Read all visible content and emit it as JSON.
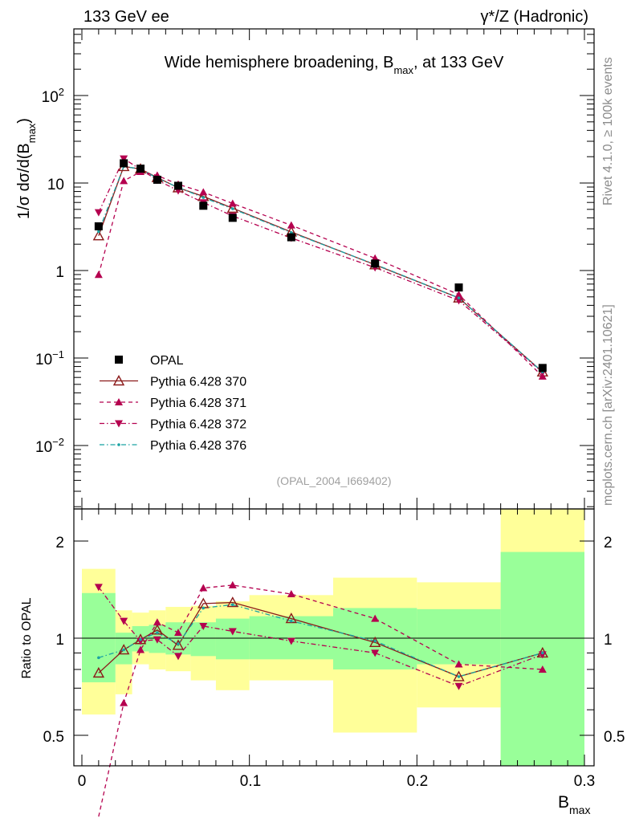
{
  "header": {
    "left": "133 GeV ee",
    "right": "γ*/Z (Hadronic)"
  },
  "plot_title": {
    "main": "Wide hemisphere broadening, B",
    "sub": "max",
    "tail": ", at 133 GeV"
  },
  "ylabel_top": {
    "pre": "1/σ  dσ/d(B",
    "sub": "max",
    "post": ")"
  },
  "ylabel_ratio": "Ratio to OPAL",
  "xlabel": {
    "main": "B",
    "sub": "max"
  },
  "analysis_id": "(OPAL_2004_I669402)",
  "side_text": {
    "rivet": "Rivet 4.1.0, ≥ 100k events",
    "mcplots": "mcplots.cern.ch [arXiv:2401.10621]"
  },
  "legend": [
    {
      "label": "OPAL",
      "marker": "square",
      "color": "#000000",
      "dash": "none"
    },
    {
      "label": "Pythia 6.428 370",
      "marker": "triangle-open",
      "color": "#8b1a1a",
      "dash": "solid"
    },
    {
      "label": "Pythia 6.428 371",
      "marker": "triangle-up",
      "color": "#b5004f",
      "dash": "dashed"
    },
    {
      "label": "Pythia 6.428 372",
      "marker": "triangle-down",
      "color": "#b5004f",
      "dash": "dashdot"
    },
    {
      "label": "Pythia 6.428 376",
      "marker": "dot",
      "color": "#1aa3a3",
      "dash": "dashdot"
    }
  ],
  "y_tick_labels_main": {
    "e2": "10",
    "e2sup": "2",
    "e1": "10",
    "e0": "1",
    "em1": "10",
    "em1sup": "−1",
    "em2": "10",
    "em2sup": "−2"
  },
  "y_tick_labels_ratio": [
    "0.5",
    "1",
    "2"
  ],
  "x_tick_labels": [
    "0",
    "0.1",
    "0.2",
    "0.3"
  ],
  "chart_data": {
    "type": "line",
    "xlim": [
      0,
      0.3
    ],
    "main_ylim_log": [
      0.0015,
      900
    ],
    "ratio_ylim_log": [
      0.44,
      2.35
    ],
    "x": [
      0.01,
      0.025,
      0.035,
      0.045,
      0.0575,
      0.0725,
      0.09,
      0.125,
      0.175,
      0.225,
      0.275
    ],
    "bin_edges": [
      0.0,
      0.02,
      0.03,
      0.04,
      0.05,
      0.065,
      0.08,
      0.1,
      0.15,
      0.2,
      0.25,
      0.3
    ],
    "data": {
      "name": "OPAL",
      "values": [
        3.2,
        16.8,
        14.6,
        10.9,
        9.3,
        5.5,
        4.0,
        2.4,
        1.2,
        0.64,
        0.077
      ]
    },
    "series": [
      {
        "name": "Pythia 6.428 370",
        "ratio": [
          0.78,
          0.92,
          0.99,
          1.06,
          0.95,
          1.28,
          1.29,
          1.15,
          0.97,
          0.76,
          0.9
        ]
      },
      {
        "name": "Pythia 6.428 371",
        "ratio": [
          0.28,
          0.63,
          0.92,
          1.12,
          1.04,
          1.43,
          1.46,
          1.37,
          1.15,
          0.83,
          0.8
        ]
      },
      {
        "name": "Pythia 6.428 372",
        "ratio": [
          1.44,
          1.13,
          0.98,
          0.99,
          0.88,
          1.09,
          1.05,
          0.98,
          0.9,
          0.71,
          0.89
        ]
      },
      {
        "name": "Pythia 6.428 376",
        "ratio": [
          0.87,
          0.92,
          0.99,
          1.04,
          0.96,
          1.24,
          1.27,
          1.13,
          0.98,
          0.76,
          0.9
        ]
      }
    ],
    "uncertainty_bands": {
      "yellow": [
        [
          0.58,
          1.64
        ],
        [
          0.67,
          1.22
        ],
        [
          0.83,
          1.2
        ],
        [
          0.8,
          1.22
        ],
        [
          0.79,
          1.25
        ],
        [
          0.74,
          1.26
        ],
        [
          0.69,
          1.3
        ],
        [
          0.74,
          1.36
        ],
        [
          0.51,
          1.54
        ],
        [
          0.61,
          1.49
        ],
        [
          0.2,
          3.0
        ]
      ],
      "green": [
        [
          0.73,
          1.38
        ],
        [
          0.83,
          1.04
        ],
        [
          0.91,
          1.09
        ],
        [
          0.9,
          1.1
        ],
        [
          0.89,
          1.12
        ],
        [
          0.88,
          1.12
        ],
        [
          0.86,
          1.15
        ],
        [
          0.86,
          1.17
        ],
        [
          0.8,
          1.24
        ],
        [
          0.83,
          1.23
        ],
        [
          0.3,
          1.85
        ]
      ]
    }
  }
}
